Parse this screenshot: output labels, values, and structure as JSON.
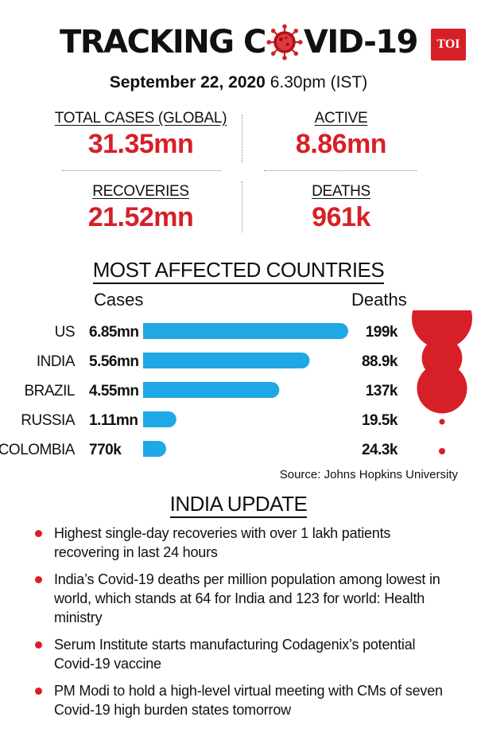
{
  "header": {
    "title_before": "TRACKING C",
    "title_after": "VID-19",
    "badge": "TOI",
    "date": "September 22, 2020",
    "time": "6.30pm (IST)"
  },
  "stats": {
    "total": {
      "label": "TOTAL CASES (GLOBAL)",
      "value": "31.35mn"
    },
    "active": {
      "label": "ACTIVE",
      "value": "8.86mn"
    },
    "recoveries": {
      "label": "RECOVERIES",
      "value": "21.52mn"
    },
    "deaths": {
      "label": "DEATHS",
      "value": "961k"
    }
  },
  "most_affected": {
    "title": "MOST AFFECTED COUNTRIES",
    "cases_header": "Cases",
    "deaths_header": "Deaths"
  },
  "chart_data": {
    "type": "bar",
    "categories": [
      "US",
      "INDIA",
      "BRAZIL",
      "RUSSIA",
      "COLOMBIA"
    ],
    "series": [
      {
        "name": "Cases",
        "values": [
          6.85,
          5.56,
          4.55,
          1.11,
          0.77
        ],
        "labels": [
          "6.85mn",
          "5.56mn",
          "4.55mn",
          "1.11mn",
          "770k"
        ],
        "unit": "mn"
      },
      {
        "name": "Deaths",
        "values": [
          199,
          88.9,
          137,
          19.5,
          24.3
        ],
        "labels": [
          "199k",
          "88.9k",
          "137k",
          "19.5k",
          "24.3k"
        ],
        "unit": "k"
      }
    ],
    "colors": {
      "cases_bar": "#1ea8e6",
      "deaths_bubble": "#d71f27"
    }
  },
  "source": "Source: Johns Hopkins University",
  "india_update": {
    "title": "INDIA UPDATE",
    "items": [
      "Highest single-day recoveries with over 1 lakh patients recovering in last 24 hours",
      "India’s Covid-19 deaths per million population among lowest in world, which stands at 64 for India and 123 for world: Health ministry",
      "Serum Institute starts manufacturing Codagenix’s potential Covid-19 vaccine",
      "PM Modi to hold a high-level virtual meeting with CMs of seven Covid-19 high burden states tomorrow"
    ]
  },
  "colors": {
    "accent_red": "#d71f27",
    "bar_blue": "#1ea8e6",
    "text": "#111111"
  }
}
